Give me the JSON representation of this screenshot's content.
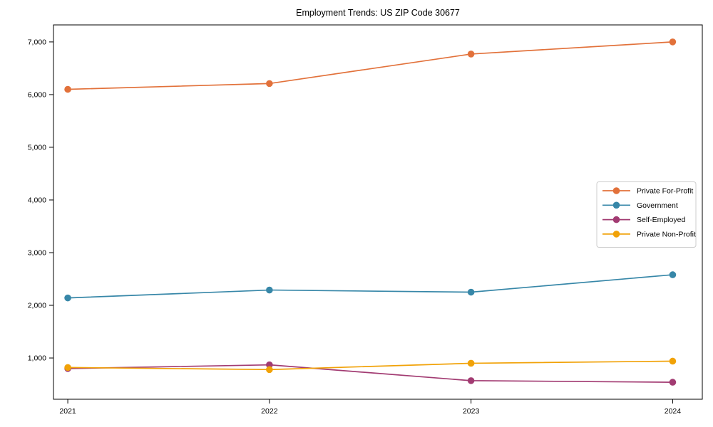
{
  "chart_data": {
    "type": "line",
    "title": "Employment Trends: US ZIP Code 30677",
    "x": [
      2021,
      2022,
      2023,
      2024
    ],
    "x_tick_labels": [
      "2021",
      "2022",
      "2023",
      "2024"
    ],
    "y_ticks": [
      1000,
      2000,
      3000,
      4000,
      5000,
      6000,
      7000
    ],
    "y_tick_labels": [
      "1,000",
      "2,000",
      "3,000",
      "4,000",
      "5,000",
      "6,000",
      "7,000"
    ],
    "xlim": [
      2020.929,
      2024.147
    ],
    "ylim": [
      217,
      7323
    ],
    "grid": false,
    "legend_position": "center right",
    "axis_color": "#000000",
    "text_color": "#000000",
    "legend_border_color": "#cccccc",
    "series": [
      {
        "name": "Private For-Profit",
        "color": "#e2713a",
        "values": [
          6100,
          6210,
          6770,
          7000
        ]
      },
      {
        "name": "Government",
        "color": "#3787a8",
        "values": [
          2140,
          2290,
          2250,
          2580
        ]
      },
      {
        "name": "Self-Employed",
        "color": "#a23b72",
        "values": [
          800,
          870,
          570,
          540
        ]
      },
      {
        "name": "Private Non-Profit",
        "color": "#f1a208",
        "values": [
          820,
          780,
          900,
          940
        ]
      }
    ]
  }
}
